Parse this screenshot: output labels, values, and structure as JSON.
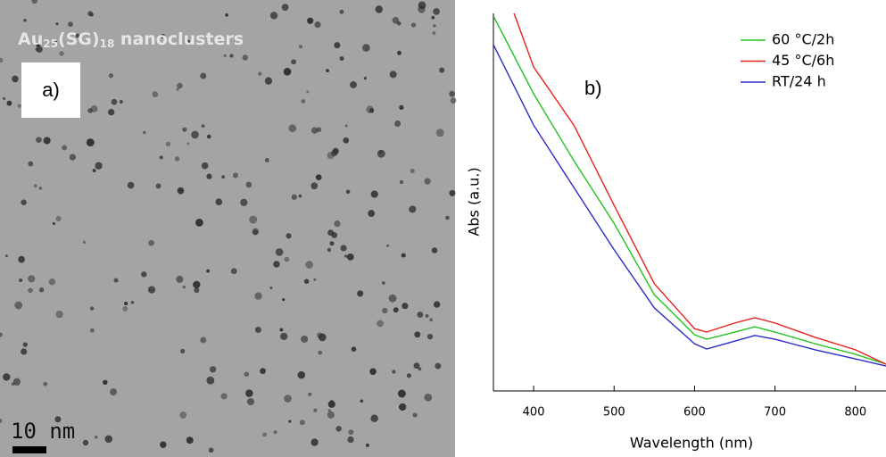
{
  "image": {
    "label": {
      "base": "Au",
      "sub1": "25",
      "mid": "(SG)",
      "sub2": "18",
      "rest": " nanoclusters"
    },
    "panel": "a)",
    "scale": "10 nm"
  },
  "chart_data": {
    "type": "line",
    "annotation": "b)",
    "x_label": "Wavelength (nm)",
    "y_label": "Abs (a.u.)",
    "x": [
      350,
      400,
      450,
      500,
      550,
      600,
      615,
      650,
      675,
      700,
      750,
      800,
      838
    ],
    "series": [
      {
        "name": "60 °C/2h",
        "color": "#22c322",
        "values": [
          0.993,
          0.787,
          0.61,
          0.444,
          0.255,
          0.149,
          0.137,
          0.156,
          0.17,
          0.156,
          0.125,
          0.097,
          0.071
        ]
      },
      {
        "name": "45 °C/6h",
        "color": "#e8201c",
        "values": [
          1.15,
          0.858,
          0.704,
          0.492,
          0.284,
          0.165,
          0.156,
          0.18,
          0.194,
          0.18,
          0.142,
          0.109,
          0.071
        ]
      },
      {
        "name": "RT/24 h",
        "color": "#2a2ac8",
        "values": [
          0.917,
          0.704,
          0.539,
          0.374,
          0.22,
          0.125,
          0.111,
          0.132,
          0.147,
          0.137,
          0.109,
          0.085,
          0.066
        ]
      }
    ],
    "xlim": [
      350,
      838
    ],
    "ylim": [
      0,
      1
    ],
    "xticks": [
      400,
      500,
      600,
      700,
      800
    ],
    "legend": "upper right"
  }
}
